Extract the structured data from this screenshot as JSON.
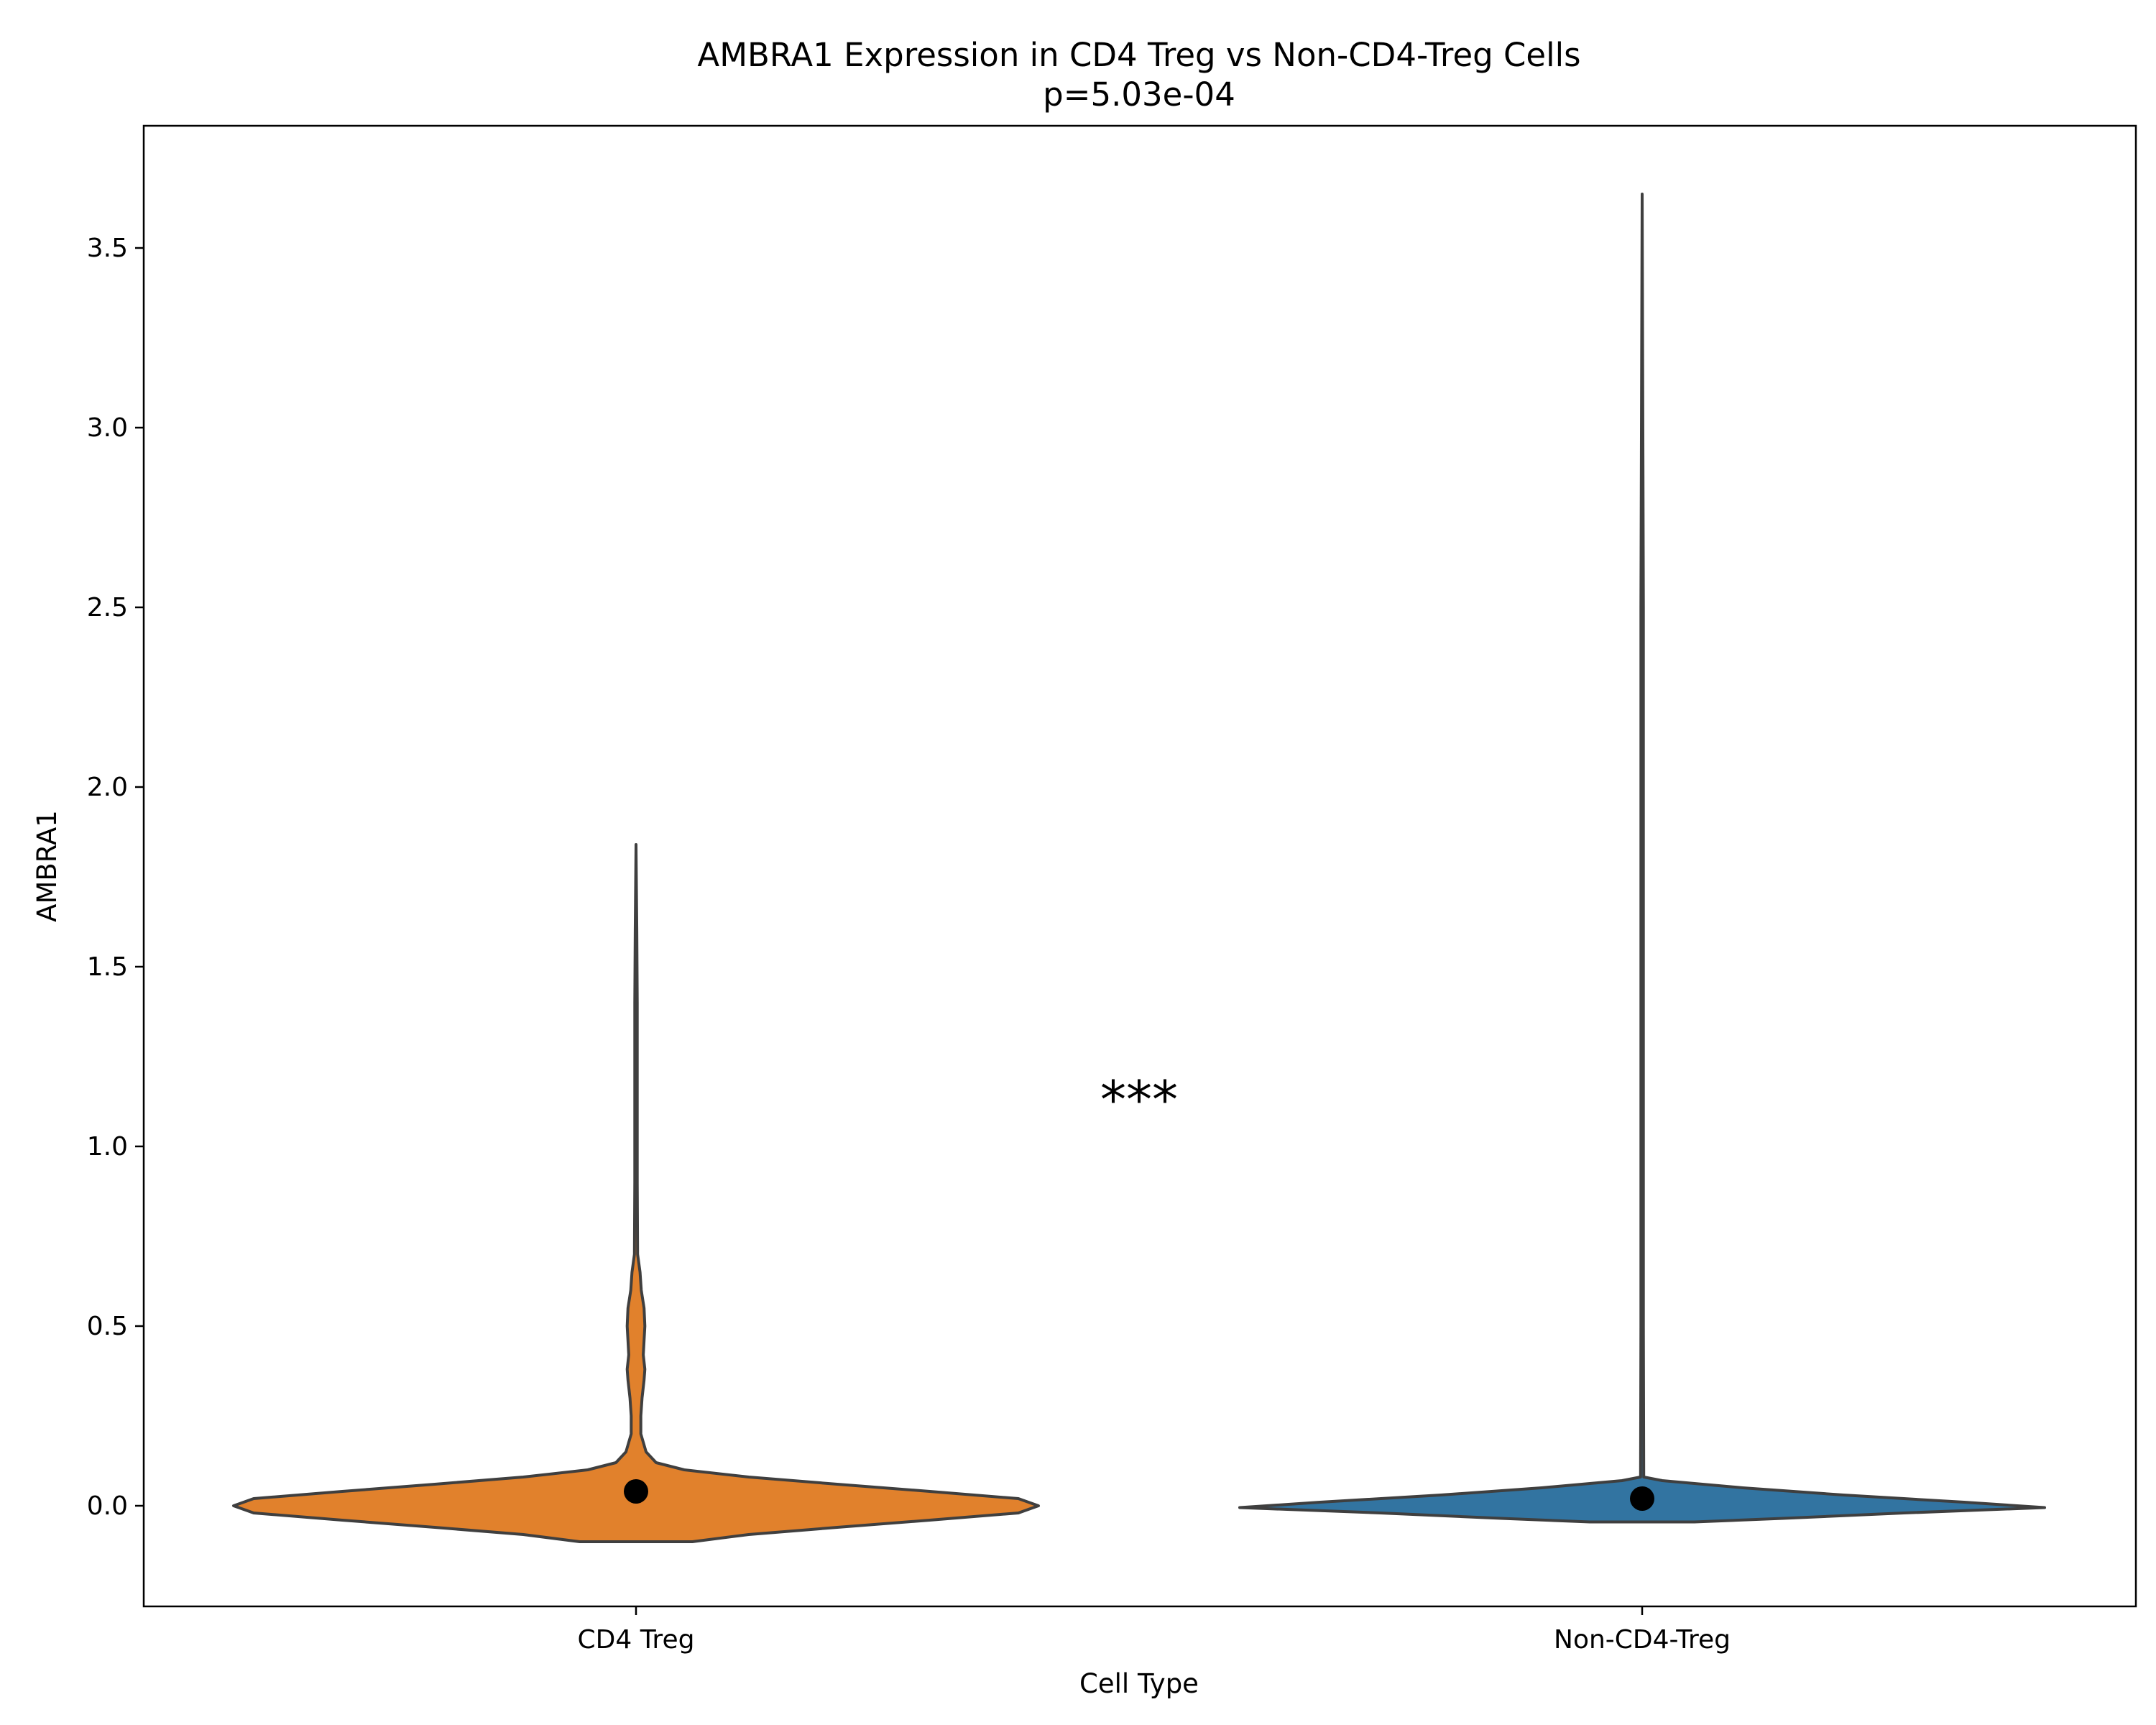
{
  "chart_data": {
    "type": "violin",
    "title": "AMBRA1 Expression in CD4 Treg vs Non-CD4-Treg Cells",
    "subtitle": "p=5.03e-04",
    "xlabel": "Cell Type",
    "ylabel": "AMBRA1",
    "ylim": [
      -0.28,
      3.84
    ],
    "yticks": [
      "0.0",
      "0.5",
      "1.0",
      "1.5",
      "2.0",
      "2.5",
      "3.0",
      "3.5"
    ],
    "categories": [
      "CD4 Treg",
      "Non-CD4-Treg"
    ],
    "significance_label": "***",
    "grid": false,
    "legend": "none",
    "series": [
      {
        "category": "CD4 Treg",
        "color": "#e1812c",
        "min": -0.1,
        "max": 1.84,
        "mean": 0.04,
        "density_profile": [
          [
            -0.1,
            0.14
          ],
          [
            -0.08,
            0.28
          ],
          [
            -0.06,
            0.5
          ],
          [
            -0.04,
            0.73
          ],
          [
            -0.02,
            0.95
          ],
          [
            0.0,
            1.0
          ],
          [
            0.02,
            0.95
          ],
          [
            0.04,
            0.73
          ],
          [
            0.06,
            0.5
          ],
          [
            0.08,
            0.28
          ],
          [
            0.1,
            0.12
          ],
          [
            0.12,
            0.05
          ],
          [
            0.15,
            0.025
          ],
          [
            0.2,
            0.012
          ],
          [
            0.25,
            0.012
          ],
          [
            0.3,
            0.015
          ],
          [
            0.35,
            0.02
          ],
          [
            0.38,
            0.022
          ],
          [
            0.42,
            0.018
          ],
          [
            0.5,
            0.022
          ],
          [
            0.55,
            0.02
          ],
          [
            0.6,
            0.013
          ],
          [
            0.65,
            0.01
          ],
          [
            0.7,
            0.004
          ],
          [
            0.9,
            0.003
          ],
          [
            1.0,
            0.003
          ],
          [
            1.2,
            0.003
          ],
          [
            1.4,
            0.003
          ],
          [
            1.6,
            0.002
          ],
          [
            1.84,
            0.0
          ]
        ]
      },
      {
        "category": "Non-CD4-Treg",
        "color": "#3274a1",
        "min": -0.045,
        "max": 3.65,
        "mean": 0.02,
        "density_profile": [
          [
            -0.045,
            0.13
          ],
          [
            -0.035,
            0.35
          ],
          [
            -0.02,
            0.65
          ],
          [
            -0.005,
            1.0
          ],
          [
            0.01,
            0.8
          ],
          [
            0.03,
            0.5
          ],
          [
            0.05,
            0.25
          ],
          [
            0.07,
            0.05
          ],
          [
            0.08,
            0.004
          ],
          [
            0.5,
            0.003
          ],
          [
            1.5,
            0.003
          ],
          [
            2.5,
            0.003
          ],
          [
            3.65,
            0.0
          ]
        ]
      }
    ]
  }
}
